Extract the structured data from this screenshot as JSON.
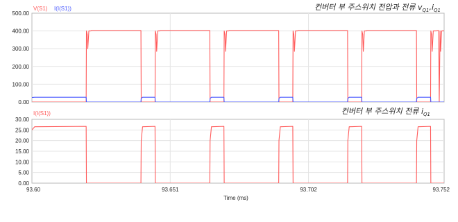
{
  "chart_data": [
    {
      "type": "line",
      "legend": [
        "V(S1)",
        "I(I(S1))"
      ],
      "annotation": "컨버터 부 주스위치 전압과 전류 v",
      "annotation_sub1": "Q1",
      "annotation_mid": ",i",
      "annotation_sub2": "Q1",
      "ylim": [
        0,
        500
      ],
      "yticks": [
        "0.00",
        "100.00",
        "200.00",
        "300.00",
        "400.00",
        "500.00"
      ],
      "grid": true,
      "series": [
        {
          "name": "V(S1)",
          "color": "#ff5a5a",
          "x": [
            93.6,
            93.62,
            93.6201,
            93.6204,
            93.6206,
            93.621,
            93.6218,
            93.6219,
            93.6402,
            93.6403,
            93.6454,
            93.6455,
            93.6458,
            93.646,
            93.6464,
            93.6472,
            93.6473,
            93.6656,
            93.6657,
            93.6708,
            93.6709,
            93.6712,
            93.6714,
            93.6718,
            93.6726,
            93.6727,
            93.691,
            93.6911,
            93.6962,
            93.6963,
            93.6966,
            93.6968,
            93.6972,
            93.698,
            93.6981,
            93.7164,
            93.7165,
            93.7216,
            93.7217,
            93.722,
            93.7222,
            93.7226,
            93.7234,
            93.7235,
            93.7418,
            93.7419,
            93.747,
            93.7471,
            93.7474,
            93.7476,
            93.748,
            93.749,
            93.75,
            93.7502,
            93.7505,
            93.7507,
            93.7511,
            93.752
          ],
          "y": [
            0,
            0,
            400,
            380,
            300,
            400,
            400,
            402,
            402,
            0,
            0,
            400,
            380,
            285,
            400,
            400,
            402,
            402,
            0,
            0,
            400,
            380,
            285,
            400,
            400,
            402,
            402,
            0,
            0,
            400,
            380,
            285,
            400,
            400,
            402,
            402,
            0,
            0,
            400,
            380,
            285,
            400,
            400,
            402,
            402,
            0,
            0,
            400,
            380,
            285,
            400,
            400,
            402,
            0,
            400,
            285,
            400,
            400
          ]
        },
        {
          "name": "I(I(S1))",
          "color": "#4a5aff",
          "x": [
            93.6,
            93.601,
            93.62,
            93.6201,
            93.6402,
            93.6403,
            93.6408,
            93.6454,
            93.6455,
            93.6656,
            93.6657,
            93.6662,
            93.6708,
            93.6709,
            93.691,
            93.6911,
            93.6916,
            93.6962,
            93.6963,
            93.7164,
            93.7165,
            93.717,
            93.7216,
            93.7217,
            93.7418,
            93.7419,
            93.7424,
            93.747,
            93.7471,
            93.752
          ],
          "y": [
            25,
            26.5,
            26.7,
            0,
            0,
            20,
            26.5,
            26.7,
            0,
            0,
            20,
            26.5,
            26.7,
            0,
            0,
            20,
            26.5,
            26.7,
            0,
            0,
            20,
            26.5,
            26.7,
            0,
            0,
            20,
            26.5,
            26.7,
            0,
            0
          ]
        }
      ]
    },
    {
      "type": "line",
      "legend": [
        "I(I(S1))"
      ],
      "annotation": "컨버터 부 주스위치 전류 i",
      "annotation_sub1": "Q1",
      "xlabel": "Time (ms)",
      "xlim": [
        93.6,
        93.752
      ],
      "xticks": [
        "93.60",
        "93.651",
        "93.702",
        "93.752"
      ],
      "ylim": [
        0,
        30
      ],
      "yticks": [
        "0.00",
        "5.00",
        "10.00",
        "15.00",
        "20.00",
        "25.00",
        "30.00"
      ],
      "grid": true,
      "series": [
        {
          "name": "I(I(S1))",
          "color": "#ff5a5a",
          "x": [
            93.6,
            93.601,
            93.62,
            93.6201,
            93.6402,
            93.6403,
            93.6408,
            93.6454,
            93.6455,
            93.6656,
            93.6657,
            93.6662,
            93.6708,
            93.6709,
            93.691,
            93.6911,
            93.6916,
            93.6962,
            93.6963,
            93.7164,
            93.7165,
            93.717,
            93.7216,
            93.7217,
            93.7418,
            93.7419,
            93.7424,
            93.747,
            93.7471,
            93.752
          ],
          "y": [
            25,
            26.5,
            26.7,
            0,
            0,
            20,
            26.5,
            26.7,
            0,
            0,
            20,
            26.5,
            26.7,
            0,
            0,
            20,
            26.5,
            26.7,
            0,
            0,
            20,
            26.5,
            26.7,
            0,
            0,
            20,
            26.5,
            26.7,
            0,
            0
          ]
        }
      ]
    }
  ]
}
